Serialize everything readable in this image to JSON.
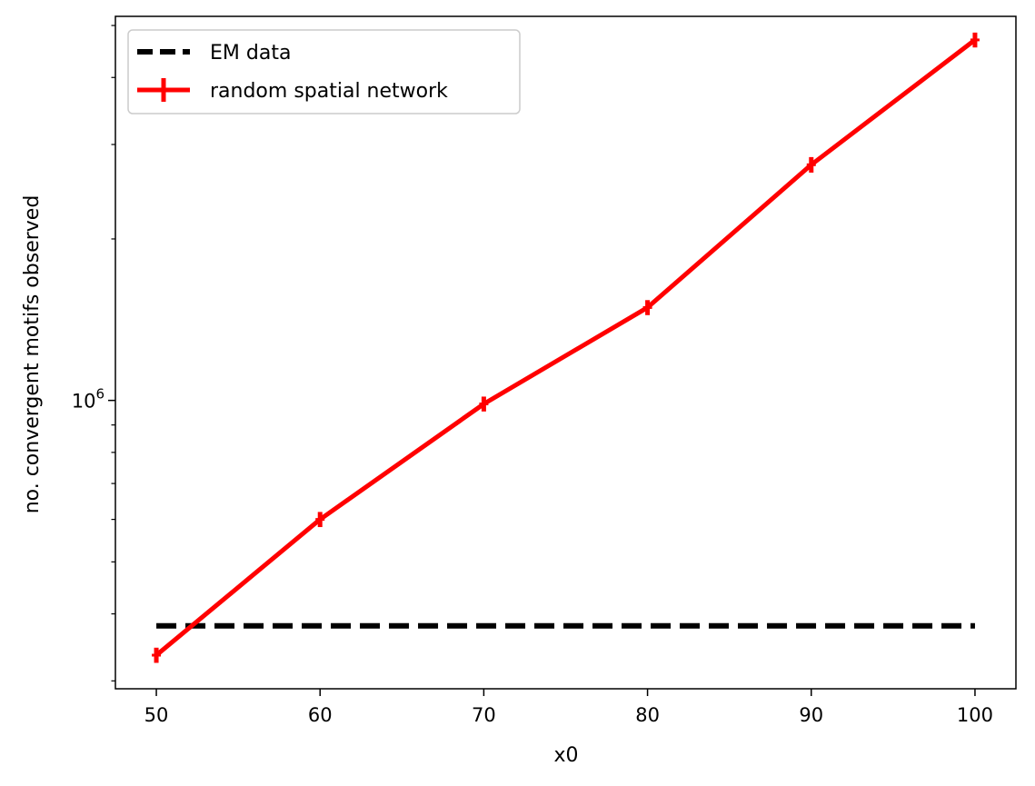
{
  "chart_data": {
    "type": "line",
    "title": "",
    "xlabel": "x0",
    "ylabel": "no. convergent motifs observed",
    "yscale": "log",
    "xlim": [
      47.5,
      102.5
    ],
    "ylim": [
      290000,
      5200000
    ],
    "x_ticks": [
      50,
      60,
      70,
      80,
      90,
      100
    ],
    "x_tick_labels": [
      "50",
      "60",
      "70",
      "80",
      "90",
      "100"
    ],
    "y_major_ticks": [
      1000000
    ],
    "y_major_tick_base": "10",
    "y_major_tick_exp": "6",
    "y_minor_ticks": [
      300000,
      400000,
      500000,
      600000,
      700000,
      800000,
      900000,
      2000000,
      3000000,
      4000000,
      5000000
    ],
    "grid": false,
    "legend_position": "top-left",
    "series": [
      {
        "name": "EM data",
        "style": "dashed",
        "color": "#000000",
        "x": [
          50,
          100
        ],
        "y": [
          380000,
          380000
        ]
      },
      {
        "name": "random spatial network",
        "style": "solid",
        "color": "#ff0000",
        "x": [
          50,
          60,
          70,
          80,
          90,
          100
        ],
        "y": [
          335000,
          600000,
          985000,
          1490000,
          2750000,
          4700000
        ],
        "yerr": [
          10000,
          18000,
          30000,
          45000,
          80000,
          150000
        ]
      }
    ]
  }
}
